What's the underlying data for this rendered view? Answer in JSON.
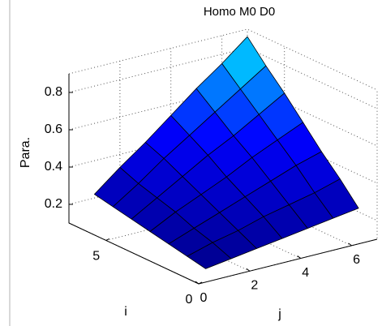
{
  "chart_data": {
    "type": "surface",
    "title": "Homo M0 D0",
    "xlabel": "j",
    "ylabel": "i",
    "zlabel": "Para.",
    "x": [
      1,
      2,
      3,
      4,
      5,
      6,
      7
    ],
    "y": [
      1,
      2,
      3,
      4,
      5,
      6,
      7
    ],
    "z": [
      [
        0.1,
        0.12,
        0.14,
        0.16,
        0.18,
        0.2,
        0.22
      ],
      [
        0.12,
        0.16,
        0.19,
        0.23,
        0.26,
        0.29,
        0.33
      ],
      [
        0.14,
        0.19,
        0.24,
        0.29,
        0.34,
        0.39,
        0.43
      ],
      [
        0.16,
        0.23,
        0.29,
        0.35,
        0.42,
        0.48,
        0.54
      ],
      [
        0.18,
        0.26,
        0.34,
        0.42,
        0.49,
        0.57,
        0.65
      ],
      [
        0.2,
        0.29,
        0.39,
        0.48,
        0.57,
        0.66,
        0.75
      ],
      [
        0.22,
        0.33,
        0.43,
        0.54,
        0.65,
        0.75,
        0.86
      ]
    ],
    "xlim": [
      0,
      7
    ],
    "ylim": [
      0,
      7
    ],
    "zlim": [
      0.1,
      0.9
    ],
    "xticks": [
      0,
      2,
      4,
      6
    ],
    "yticks": [
      0,
      5
    ],
    "zticks": [
      0.2,
      0.4,
      0.6,
      0.8
    ],
    "grid": true,
    "colormap": [
      "#00008f",
      "#0000ff",
      "#00ffff"
    ],
    "edge_color": "#000000"
  }
}
